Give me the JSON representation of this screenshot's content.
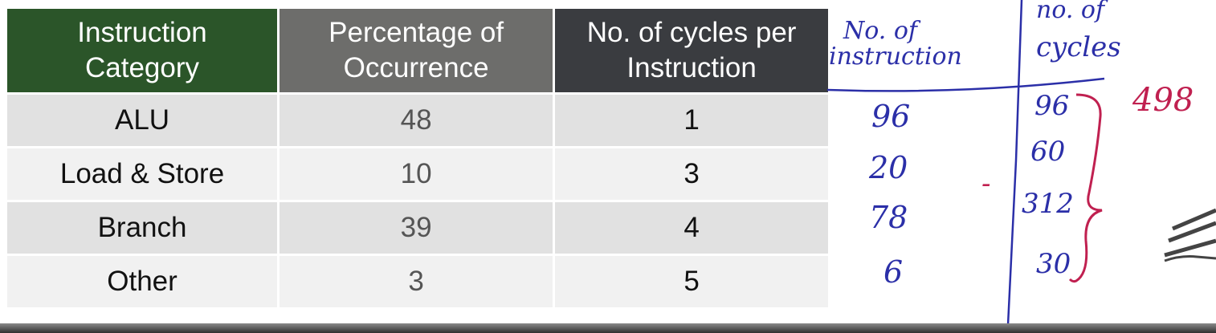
{
  "table": {
    "headers": [
      [
        "Instruction",
        "Category"
      ],
      [
        "Percentage of",
        "Occurrence"
      ],
      [
        "No. of cycles per",
        "Instruction"
      ]
    ],
    "rows": [
      [
        "ALU",
        "48",
        "1"
      ],
      [
        "Load & Store",
        "10",
        "3"
      ],
      [
        "Branch",
        "39",
        "4"
      ],
      [
        "Other",
        "3",
        "5"
      ]
    ]
  },
  "annotations": {
    "col1_header": [
      "No. of",
      "instruction"
    ],
    "col2_header": [
      "no. of",
      "cycles"
    ],
    "instructions": [
      "96",
      "20",
      "78",
      "6"
    ],
    "cycles": [
      "96",
      "60",
      "312",
      "30"
    ],
    "total": "498",
    "dash": "-"
  },
  "colors": {
    "ink_blue": "#2b2fa8",
    "ink_red": "#c02050",
    "header_green": "#2b5529",
    "header_gray": "#6d6d6b",
    "header_dark": "#3a3c40"
  }
}
